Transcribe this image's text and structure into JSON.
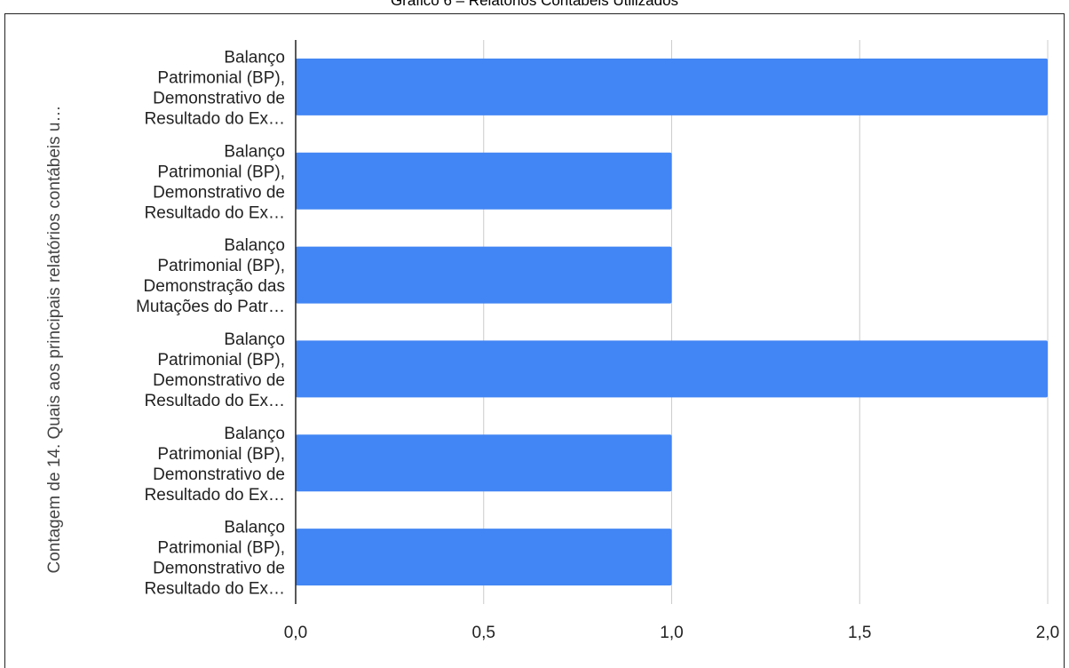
{
  "chart_data": {
    "type": "bar",
    "orientation": "horizontal",
    "title": "Gráfico 6 – Relatórios Contábeis Utilizados",
    "ylabel": "Contagem de 14. Quais aos principais relatórios contábeis u…",
    "xlabel": "",
    "categories": [
      [
        "Balanço",
        "Patrimonial (BP),",
        "Demonstrativo de",
        "Resultado do Ex…"
      ],
      [
        "Balanço",
        "Patrimonial (BP),",
        "Demonstrativo de",
        "Resultado do Ex…"
      ],
      [
        "Balanço",
        "Patrimonial (BP),",
        "Demonstração das",
        "Mutações do Patr…"
      ],
      [
        "Balanço",
        "Patrimonial (BP),",
        "Demonstrativo de",
        "Resultado do Ex…"
      ],
      [
        "Balanço",
        "Patrimonial (BP),",
        "Demonstrativo de",
        "Resultado do Ex…"
      ],
      [
        "Balanço",
        "Patrimonial (BP),",
        "Demonstrativo de",
        "Resultado do Ex…"
      ]
    ],
    "values": [
      2,
      1,
      1,
      2,
      1,
      1
    ],
    "xlim": [
      0,
      2
    ],
    "xticks": [
      0,
      0.5,
      1,
      1.5,
      2
    ],
    "xtick_labels": [
      "0,0",
      "0,5",
      "1,0",
      "1,5",
      "2,0"
    ],
    "grid": true,
    "bar_color": "#4285f4",
    "grid_color": "#cccccc",
    "axis_color": "#222222"
  }
}
